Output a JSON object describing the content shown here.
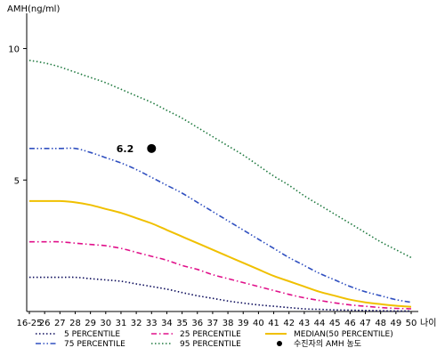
{
  "chart_data": {
    "type": "line",
    "ylabel": "AMH(ng/ml)",
    "xlabel": "나이",
    "categories": [
      "16-25",
      "26",
      "27",
      "28",
      "29",
      "30",
      "31",
      "32",
      "33",
      "34",
      "35",
      "36",
      "37",
      "38",
      "39",
      "40",
      "41",
      "42",
      "43",
      "44",
      "45",
      "46",
      "47",
      "48",
      "49",
      "50"
    ],
    "ylim": [
      0,
      11
    ],
    "yticks": [
      5,
      10
    ],
    "grid": false,
    "legend_position": "bottom",
    "series": [
      {
        "name": "5 PERCENTILE",
        "color": "#0a0a5a",
        "style": "dotted",
        "values": [
          1.3,
          1.3,
          1.3,
          1.3,
          1.25,
          1.2,
          1.15,
          1.05,
          0.95,
          0.85,
          0.72,
          0.6,
          0.5,
          0.4,
          0.32,
          0.25,
          0.2,
          0.15,
          0.1,
          0.08,
          0.06,
          0.05,
          0.04,
          0.03,
          0.02,
          0.02
        ]
      },
      {
        "name": "25 PERCENTILE",
        "color": "#e0108a",
        "style": "dashdot",
        "values": [
          2.65,
          2.65,
          2.65,
          2.6,
          2.55,
          2.5,
          2.4,
          2.25,
          2.1,
          1.95,
          1.75,
          1.6,
          1.4,
          1.25,
          1.1,
          0.95,
          0.8,
          0.65,
          0.52,
          0.42,
          0.33,
          0.25,
          0.2,
          0.15,
          0.12,
          0.1
        ]
      },
      {
        "name": "MEDIAN(50 PERCENTILE)",
        "color": "#f0c000",
        "style": "solid",
        "values": [
          4.2,
          4.2,
          4.2,
          4.15,
          4.05,
          3.9,
          3.75,
          3.55,
          3.35,
          3.1,
          2.85,
          2.6,
          2.35,
          2.1,
          1.85,
          1.6,
          1.35,
          1.15,
          0.95,
          0.75,
          0.6,
          0.45,
          0.35,
          0.28,
          0.22,
          0.18
        ]
      },
      {
        "name": "75 PERCENTILE",
        "color": "#3050c0",
        "style": "dashdotdot",
        "values": [
          6.2,
          6.2,
          6.2,
          6.2,
          6.05,
          5.85,
          5.65,
          5.4,
          5.1,
          4.8,
          4.5,
          4.15,
          3.8,
          3.45,
          3.1,
          2.75,
          2.4,
          2.05,
          1.75,
          1.45,
          1.2,
          0.95,
          0.75,
          0.6,
          0.45,
          0.35
        ]
      },
      {
        "name": "95 PERCENTILE",
        "color": "#207a40",
        "style": "dotted",
        "values": [
          9.55,
          9.45,
          9.3,
          9.1,
          8.9,
          8.7,
          8.45,
          8.2,
          7.95,
          7.65,
          7.35,
          7.0,
          6.65,
          6.3,
          5.95,
          5.55,
          5.15,
          4.8,
          4.4,
          4.05,
          3.7,
          3.35,
          3.0,
          2.65,
          2.35,
          2.05
        ]
      }
    ],
    "marker": {
      "label": "6.2",
      "x": "33",
      "y": 6.2,
      "legend": "수진자의 AMH 농도",
      "color": "#000000"
    }
  }
}
